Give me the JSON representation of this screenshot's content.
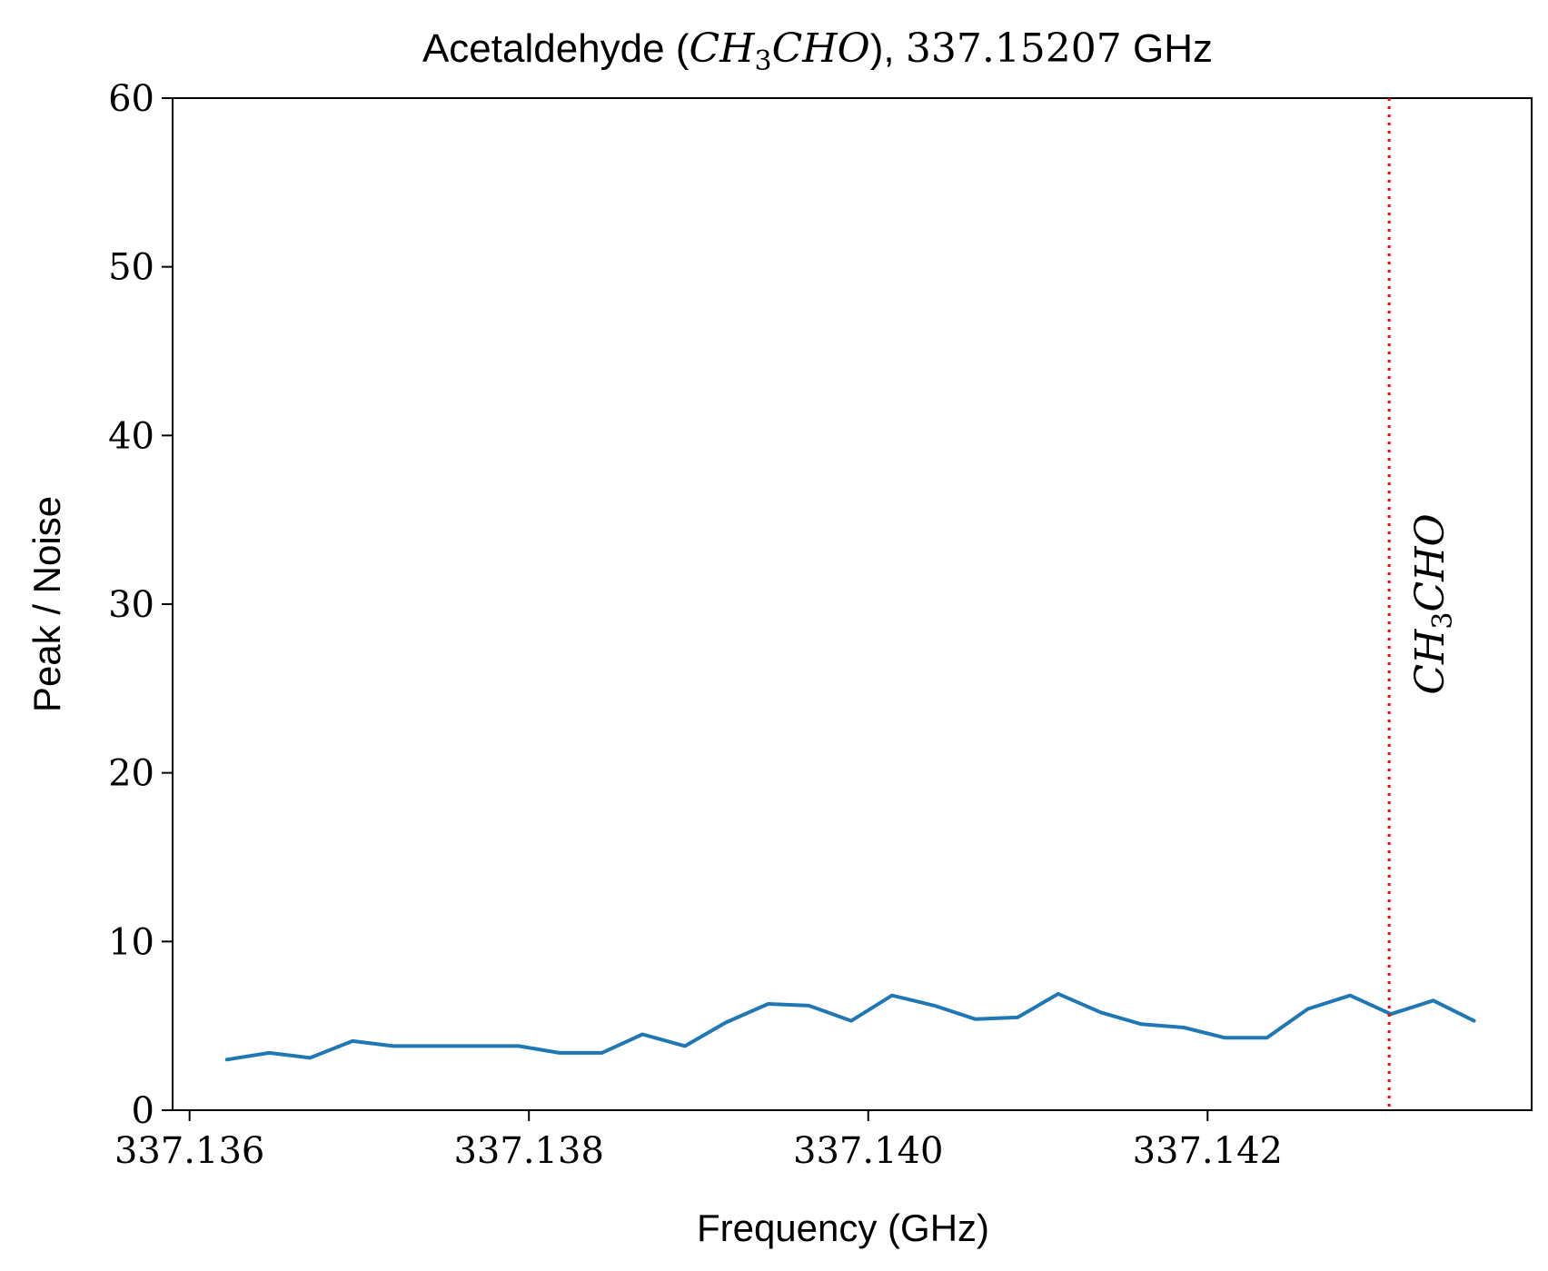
{
  "chart_data": {
    "type": "line",
    "title": {
      "prefix": "Acetaldehyde (",
      "species_parts": [
        "CH",
        "3",
        "CHO"
      ],
      "suffix_punct": "), ",
      "frequency": "337.15207",
      "unit": " GHz"
    },
    "xlabel": "Frequency (GHz)",
    "ylabel": "Peak / Noise",
    "xlim": [
      337.1359,
      337.14391
    ],
    "ylim": [
      0,
      60
    ],
    "x_ticks": [
      337.136,
      337.138,
      337.14,
      337.142
    ],
    "x_tick_labels": [
      "337.136",
      "337.138",
      "337.140",
      "337.142"
    ],
    "y_ticks": [
      0,
      10,
      20,
      30,
      40,
      50,
      60
    ],
    "y_tick_labels": [
      "0",
      "10",
      "20",
      "30",
      "40",
      "50",
      "60"
    ],
    "series": [
      {
        "color": "#1f77b4",
        "x": [
          337.13622,
          337.13647,
          337.13671,
          337.13696,
          337.1372,
          337.13745,
          337.13769,
          337.13794,
          337.13818,
          337.13843,
          337.13867,
          337.13892,
          337.13916,
          337.13941,
          337.13965,
          337.1399,
          337.14014,
          337.14039,
          337.14063,
          337.14088,
          337.14112,
          337.14137,
          337.14161,
          337.14186,
          337.1421,
          337.14235,
          337.14259,
          337.14284,
          337.14308,
          337.14333,
          337.14357
        ],
        "y": [
          3.0,
          3.4,
          3.1,
          4.1,
          3.8,
          3.8,
          3.8,
          3.8,
          3.4,
          3.4,
          4.5,
          3.8,
          5.2,
          6.3,
          6.2,
          5.3,
          6.8,
          6.2,
          5.4,
          5.5,
          6.9,
          5.8,
          5.1,
          4.9,
          4.3,
          4.3,
          6.0,
          6.8,
          5.7,
          6.5,
          5.3
        ]
      }
    ],
    "vertical_line": {
      "x": 337.14307,
      "color": "#ff0000",
      "style": "dotted",
      "label_parts": [
        "CH",
        "3",
        "CHO"
      ]
    },
    "grid": false,
    "legend": "none"
  }
}
